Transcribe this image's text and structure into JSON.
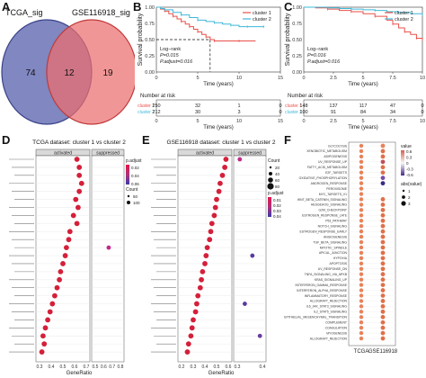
{
  "panels": {
    "A": "A",
    "B": "B",
    "C": "C",
    "D": "D",
    "E": "E",
    "F": "F"
  },
  "venn": {
    "left_label": "TCGA_sig",
    "right_label": "GSE116918_sig",
    "left_only": "74",
    "overlap": "12",
    "right_only": "19",
    "colors": {
      "left": "#5b63a8",
      "right": "#e96a6a",
      "overlap": "#a85a7a"
    }
  },
  "chart_data": [
    {
      "panel": "B",
      "type": "line",
      "ylabel": "Survival probability",
      "xlabel": "Time (years)",
      "xlim": [
        0,
        15
      ],
      "ylim": [
        0,
        1
      ],
      "x_ticks": [
        "0",
        "5",
        "10",
        "15"
      ],
      "y_ticks": [
        "0.00",
        "0.25",
        "0.50",
        "0.75",
        "1.00"
      ],
      "legend": [
        "cluster 1",
        "cluster 2"
      ],
      "series": [
        {
          "name": "cluster 1",
          "color": "#e8504a",
          "x": [
            0,
            0.5,
            1,
            1.5,
            2,
            2.5,
            3,
            3.5,
            4,
            4.5,
            5,
            5.5,
            6,
            6.5,
            7,
            8,
            10,
            12
          ],
          "y": [
            1.0,
            0.97,
            0.94,
            0.9,
            0.86,
            0.82,
            0.78,
            0.74,
            0.7,
            0.66,
            0.62,
            0.58,
            0.54,
            0.5,
            0.48,
            0.48,
            0.48,
            0.48
          ]
        },
        {
          "name": "cluster 2",
          "color": "#3fb8d8",
          "x": [
            0,
            0.5,
            1,
            2,
            3,
            4,
            5,
            6,
            7,
            8,
            9,
            10,
            11,
            12,
            13
          ],
          "y": [
            1.0,
            0.98,
            0.96,
            0.92,
            0.88,
            0.84,
            0.8,
            0.78,
            0.76,
            0.74,
            0.72,
            0.7,
            0.7,
            0.7,
            0.7
          ]
        }
      ],
      "median_line": {
        "x": 6.5,
        "y": 0.5
      },
      "annotation": [
        "Log−rank",
        "P=0.015",
        "P.adjust=0.016"
      ],
      "risk_table": {
        "title": "Number at risk",
        "time_points": [
          "0",
          "5",
          "10",
          "15"
        ],
        "rows": [
          {
            "name": "cluster 1",
            "values": [
              "250",
              "32",
              "1",
              "0"
            ]
          },
          {
            "name": "cluster 2",
            "values": [
              "212",
              "30",
              "3",
              "0"
            ]
          }
        ]
      }
    },
    {
      "panel": "C",
      "type": "line",
      "ylabel": "Survival probability",
      "xlabel": "Time (years)",
      "xlim": [
        0,
        10
      ],
      "ylim": [
        0,
        1
      ],
      "x_ticks": [
        "0",
        "2.5",
        "5",
        "7.5",
        "10"
      ],
      "y_ticks": [
        "0.00",
        "0.25",
        "0.50",
        "0.75",
        "1.00"
      ],
      "legend": [
        "cluster 1",
        "cluster 2"
      ],
      "series": [
        {
          "name": "cluster 1",
          "color": "#e8504a",
          "x": [
            0,
            1,
            2,
            3,
            4,
            5,
            6,
            7,
            7.5,
            8,
            8.5,
            9,
            9.5,
            10
          ],
          "y": [
            1.0,
            0.99,
            0.97,
            0.95,
            0.93,
            0.9,
            0.86,
            0.8,
            0.74,
            0.68,
            0.62,
            0.58,
            0.52,
            0.48
          ]
        },
        {
          "name": "cluster 2",
          "color": "#3fb8d8",
          "x": [
            0,
            1,
            2,
            3,
            4,
            5,
            6,
            7,
            8,
            9,
            10
          ],
          "y": [
            1.0,
            1.0,
            0.99,
            0.98,
            0.97,
            0.96,
            0.95,
            0.93,
            0.92,
            0.9,
            0.88
          ]
        }
      ],
      "annotation": [
        "Log−rank",
        "P=0.016",
        "P.adjust=0.016"
      ],
      "risk_table": {
        "title": "Number at risk",
        "time_points": [
          "0",
          "2.5",
          "5",
          "7.5",
          "10"
        ],
        "rows": [
          {
            "name": "cluster 1",
            "values": [
              "148",
              "137",
              "117",
              "47",
              "0"
            ]
          },
          {
            "name": "cluster 2",
            "values": [
              "100",
              "91",
              "84",
              "34",
              "0"
            ]
          }
        ]
      }
    },
    {
      "panel": "D",
      "type": "scatter",
      "title": "TCGA dataset: cluster 1 vs cluster 2",
      "xlabel": "GeneRatio",
      "facets": [
        "activated",
        "suppressed"
      ],
      "x_ticks_left": [
        "0.3",
        "0.4",
        "0.5",
        "0.6",
        "0.7"
      ],
      "x_ticks_right": [
        "0.5",
        "0.6",
        "0.7",
        "0.8"
      ],
      "legend_padjust_title": "p.adjust",
      "legend_padjust_ticks": [
        "0.02",
        "0.04",
        "0.06"
      ],
      "legend_count_title": "Count",
      "legend_count_ticks": [
        "50",
        "100"
      ],
      "rows": 25,
      "activated": [
        {
          "row": 0,
          "x": 0.62,
          "c": "#d4203a"
        },
        {
          "row": 1,
          "x": 0.64,
          "c": "#d4203a"
        },
        {
          "row": 2,
          "x": 0.64,
          "c": "#d4203a"
        },
        {
          "row": 3,
          "x": 0.66,
          "c": "#d4203a"
        },
        {
          "row": 4,
          "x": 0.64,
          "c": "#d4203a"
        },
        {
          "row": 5,
          "x": 0.61,
          "c": "#d4203a"
        },
        {
          "row": 6,
          "x": 0.63,
          "c": "#d4203a"
        },
        {
          "row": 7,
          "x": 0.59,
          "c": "#d4203a"
        },
        {
          "row": 8,
          "x": 0.62,
          "c": "#d4203a"
        },
        {
          "row": 9,
          "x": 0.56,
          "c": "#d4203a"
        },
        {
          "row": 10,
          "x": 0.55,
          "c": "#d4203a"
        },
        {
          "row": 11,
          "x": 0.53,
          "c": "#d4203a"
        },
        {
          "row": 12,
          "x": 0.52,
          "c": "#d4203a"
        },
        {
          "row": 13,
          "x": 0.5,
          "c": "#d4203a"
        },
        {
          "row": 14,
          "x": 0.48,
          "c": "#d4203a"
        },
        {
          "row": 15,
          "x": 0.47,
          "c": "#d4203a"
        },
        {
          "row": 16,
          "x": 0.45,
          "c": "#d4203a"
        },
        {
          "row": 17,
          "x": 0.43,
          "c": "#d4203a"
        },
        {
          "row": 18,
          "x": 0.41,
          "c": "#d4203a"
        },
        {
          "row": 19,
          "x": 0.39,
          "c": "#d4203a"
        },
        {
          "row": 20,
          "x": 0.37,
          "c": "#d4203a"
        },
        {
          "row": 21,
          "x": 0.35,
          "c": "#d4203a"
        },
        {
          "row": 22,
          "x": 0.33,
          "c": "#d4203a"
        },
        {
          "row": 23,
          "x": 0.34,
          "c": "#d4203a"
        },
        {
          "row": 24,
          "x": 0.32,
          "c": "#d4203a"
        }
      ],
      "suppressed": [
        {
          "row": 11,
          "x": 0.66,
          "c": "#c02a8a"
        }
      ]
    },
    {
      "panel": "E",
      "type": "scatter",
      "title": "GSE116918 dataset: cluster 1 vs cluster 2",
      "xlabel": "GeneRatio",
      "facets": [
        "activated",
        "suppressed"
      ],
      "x_ticks_left": [
        "0.2",
        "0.3",
        "0.4",
        "0.5",
        "0.6"
      ],
      "x_ticks_right": [
        "0.3",
        "0.4"
      ],
      "legend_count_title": "Count",
      "legend_count_ticks": [
        "20",
        "40",
        "60",
        "80"
      ],
      "legend_padjust_title": "p.adjust",
      "legend_padjust_ticks": [
        "0.01",
        "0.02",
        "0.03",
        "0.04"
      ],
      "rows": 25,
      "activated": [
        {
          "row": 0,
          "x": 0.58,
          "c": "#d4203a"
        },
        {
          "row": 1,
          "x": 0.57,
          "c": "#d4203a"
        },
        {
          "row": 2,
          "x": 0.55,
          "c": "#d4203a"
        },
        {
          "row": 3,
          "x": 0.53,
          "c": "#d4203a"
        },
        {
          "row": 4,
          "x": 0.52,
          "c": "#d4203a"
        },
        {
          "row": 5,
          "x": 0.5,
          "c": "#d4203a"
        },
        {
          "row": 6,
          "x": 0.49,
          "c": "#d4203a"
        },
        {
          "row": 7,
          "x": 0.48,
          "c": "#d4203a"
        },
        {
          "row": 8,
          "x": 0.46,
          "c": "#d4203a"
        },
        {
          "row": 9,
          "x": 0.45,
          "c": "#d4203a"
        },
        {
          "row": 10,
          "x": 0.44,
          "c": "#d4203a"
        },
        {
          "row": 11,
          "x": 0.42,
          "c": "#d4203a"
        },
        {
          "row": 12,
          "x": 0.41,
          "c": "#d4203a"
        },
        {
          "row": 13,
          "x": 0.4,
          "c": "#d4203a"
        },
        {
          "row": 14,
          "x": 0.38,
          "c": "#d4203a"
        },
        {
          "row": 15,
          "x": 0.37,
          "c": "#d4203a"
        },
        {
          "row": 16,
          "x": 0.36,
          "c": "#d4203a"
        },
        {
          "row": 17,
          "x": 0.34,
          "c": "#d4203a"
        },
        {
          "row": 18,
          "x": 0.33,
          "c": "#d4203a"
        },
        {
          "row": 19,
          "x": 0.32,
          "c": "#d4203a"
        },
        {
          "row": 20,
          "x": 0.3,
          "c": "#d4203a"
        },
        {
          "row": 21,
          "x": 0.29,
          "c": "#d4203a"
        },
        {
          "row": 22,
          "x": 0.28,
          "c": "#d4203a"
        },
        {
          "row": 23,
          "x": 0.26,
          "c": "#d4203a"
        },
        {
          "row": 24,
          "x": 0.25,
          "c": "#d4203a"
        }
      ],
      "suppressed": [
        {
          "row": 0,
          "x": 0.31,
          "c": "#c02a8a"
        },
        {
          "row": 12,
          "x": 0.36,
          "c": "#5a3aa0"
        },
        {
          "row": 18,
          "x": 0.33,
          "c": "#5a3aa0"
        },
        {
          "row": 22,
          "x": 0.39,
          "c": "#6a3aa0"
        }
      ]
    },
    {
      "panel": "F",
      "type": "scatter",
      "categories_x": [
        "TCGA",
        "GSE116918"
      ],
      "legend_value_title": "value",
      "legend_value_ticks": [
        "0.6",
        "0.3",
        "0",
        "-0.3",
        "-0.6"
      ],
      "legend_abs_title": "abs(value)",
      "legend_abs_ticks": [
        "1",
        "2",
        "3"
      ],
      "rows": [
        {
          "label": "GLYCOLYSIS",
          "tcga": "#e8825a",
          "gse": "#e8825a"
        },
        {
          "label": "XENOBIOTIC_METABOLISM",
          "tcga": "#e8825a",
          "gse": "#e0704a"
        },
        {
          "label": "ADIPOGENESIS",
          "tcga": "#e8825a",
          "gse": "#e0704a"
        },
        {
          "label": "UV_RESPONSE_UP",
          "tcga": "#e8825a",
          "gse": "#c04f5a"
        },
        {
          "label": "FATTY_ACID_METABOLISM",
          "tcga": "#e8825a",
          "gse": "#e0704a"
        },
        {
          "label": "E2F_TARGETS",
          "tcga": "#e8825a",
          "gse": "#e0704a"
        },
        {
          "label": "OXIDATIVE_PHOSPHORYLATION",
          "tcga": "#e8825a",
          "gse": "#7a4aa8"
        },
        {
          "label": "ANDROGEN_RESPONSE",
          "tcga": "#e8825a",
          "gse": "#3a2a88"
        },
        {
          "label": "PEROXISOME",
          "tcga": "#e8825a",
          "gse": ""
        },
        {
          "label": "MYC_TARGETS_V1",
          "tcga": "#e8825a",
          "gse": ""
        },
        {
          "label": "WNT_BETA_CATENIN_SIGNALING",
          "tcga": "#e8825a",
          "gse": "#e0704a"
        },
        {
          "label": "HEDGEHOG_SIGNALING",
          "tcga": "#e8825a",
          "gse": "#e0704a"
        },
        {
          "label": "G2M_CHECKPOINT",
          "tcga": "#e8825a",
          "gse": "#e0704a"
        },
        {
          "label": "ESTROGEN_RESPONSE_LATE",
          "tcga": "#e8825a",
          "gse": "#e0704a"
        },
        {
          "label": "P53_PATHWAY",
          "tcga": "#e8825a",
          "gse": "#e0704a"
        },
        {
          "label": "NOTCH_SIGNALING",
          "tcga": "#e8825a",
          "gse": "#e0704a"
        },
        {
          "label": "ESTROGEN_RESPONSE_EARLY",
          "tcga": "#e8825a",
          "gse": "#e0704a"
        },
        {
          "label": "ANGIOGENESIS",
          "tcga": "#e8825a",
          "gse": "#e0704a"
        },
        {
          "label": "TGF_BETA_SIGNALING",
          "tcga": "#e8825a",
          "gse": "#e0704a"
        },
        {
          "label": "MITOTIC_SPINDLE",
          "tcga": "#e8825a",
          "gse": "#e0704a"
        },
        {
          "label": "APICAL_JUNCTION",
          "tcga": "#e8825a",
          "gse": "#e0704a"
        },
        {
          "label": "HYPOXIA",
          "tcga": "#e8825a",
          "gse": "#e0704a"
        },
        {
          "label": "APOPTOSIS",
          "tcga": "#e8825a",
          "gse": "#e0704a"
        },
        {
          "label": "UV_RESPONSE_DN",
          "tcga": "#e8825a",
          "gse": "#e0704a"
        },
        {
          "label": "TNFA_SIGNALING_VIA_NFKB",
          "tcga": "#e8825a",
          "gse": "#e0704a"
        },
        {
          "label": "KRAS_SIGNALING_UP",
          "tcga": "#e8825a",
          "gse": "#e0704a"
        },
        {
          "label": "INTERFERON_GAMMA_RESPONSE",
          "tcga": "#e8825a",
          "gse": "#e0704a"
        },
        {
          "label": "INTERFERON_ALPHA_RESPONSE",
          "tcga": "#e8825a",
          "gse": "#e0704a"
        },
        {
          "label": "INFLAMMATORY_RESPONSE",
          "tcga": "#e8825a",
          "gse": "#e0704a"
        },
        {
          "label": "ALLOGRAFT_REJECTION",
          "tcga": "#e8825a",
          "gse": "#e0704a"
        },
        {
          "label": "IL6_JAK_STAT3_SIGNALING",
          "tcga": "#e8825a",
          "gse": "#e0704a"
        },
        {
          "label": "IL2_STAT5_SIGNALING",
          "tcga": "#e8825a",
          "gse": "#e0704a"
        },
        {
          "label": "EPITHELIAL_MESENCHYMAL_TRANSITION",
          "tcga": "#e8825a",
          "gse": "#e0704a"
        },
        {
          "label": "COMPLEMENT",
          "tcga": "#e8825a",
          "gse": "#e0704a"
        },
        {
          "label": "COAGULATION",
          "tcga": "#e8825a",
          "gse": "#e0704a"
        },
        {
          "label": "MYOGENESIS",
          "tcga": "#e8825a",
          "gse": "#e0704a"
        },
        {
          "label": "ALLOGRAFT_REJECTION",
          "tcga": "#e8825a",
          "gse": "#e0704a"
        }
      ]
    }
  ]
}
